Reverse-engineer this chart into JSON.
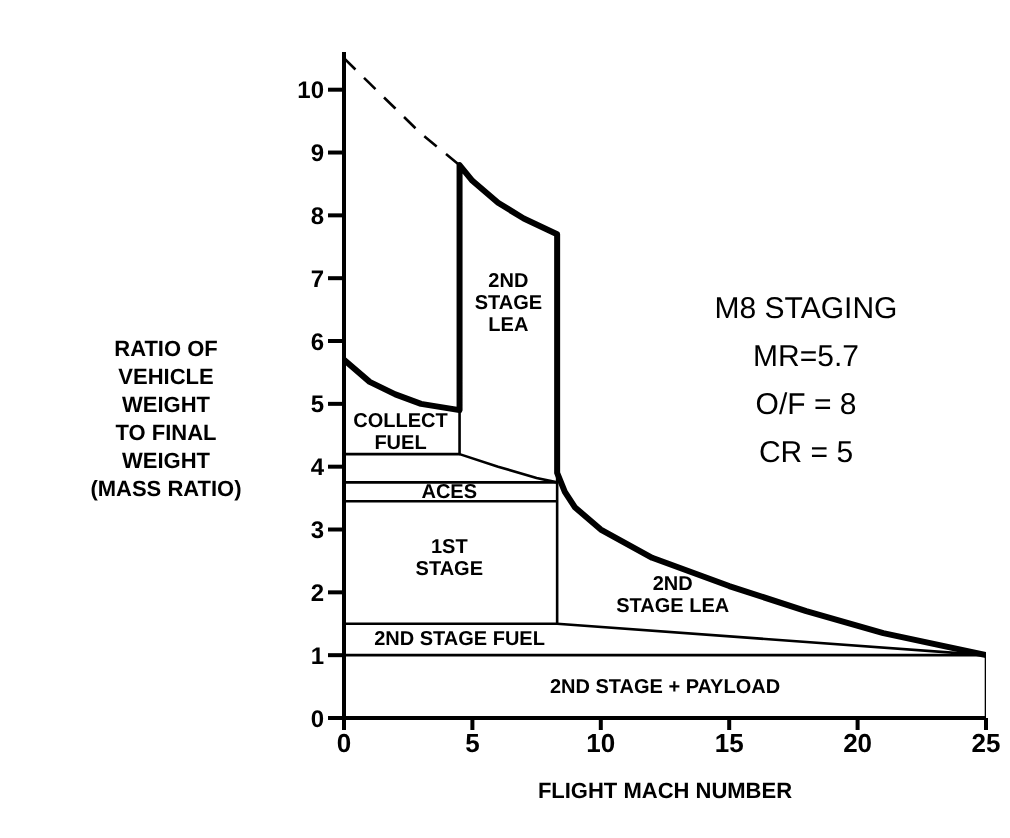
{
  "chart_data": {
    "type": "line",
    "xlabel": "FLIGHT MACH NUMBER",
    "ylabel": "RATIO OF\nVEHICLE\nWEIGHT\nTO FINAL\nWEIGHT\n(MASS RATIO)",
    "xlim": [
      0,
      25
    ],
    "xticks": [
      0,
      5,
      10,
      15,
      20,
      25
    ],
    "ylim": [
      0,
      10.6
    ],
    "yticks": [
      0,
      1,
      2,
      3,
      4,
      5,
      6,
      7,
      8,
      9,
      10
    ],
    "grid": false,
    "marker": "none",
    "series": [
      {
        "color": "#000000",
        "line_style": "dashed",
        "x": [
          0,
          1,
          2,
          3,
          4.5
        ],
        "values": [
          10.5,
          10.1,
          9.7,
          9.3,
          8.8
        ]
      },
      {
        "color": "#000000",
        "line_style": "solid",
        "x": [
          0,
          1,
          2,
          3,
          4.5,
          4.5,
          5,
          6,
          7,
          8.3,
          8.3,
          8.6,
          9,
          10,
          12,
          15,
          18,
          21,
          25
        ],
        "values": [
          5.7,
          5.35,
          5.15,
          5.0,
          4.9,
          8.8,
          8.55,
          8.2,
          7.95,
          7.7,
          3.9,
          3.6,
          3.35,
          3.0,
          2.55,
          2.1,
          1.7,
          1.35,
          1.0
        ]
      },
      {
        "color": "#000000",
        "line_style": "solid",
        "x": [
          0,
          25,
          25
        ],
        "values": [
          1.0,
          1.0,
          0
        ]
      },
      {
        "color": "#000000",
        "line_style": "solid",
        "x": [
          0,
          8.3,
          25
        ],
        "values": [
          1.5,
          1.5,
          1.0
        ]
      },
      {
        "color": "#000000",
        "line_style": "solid",
        "x": [
          8.3,
          8.3
        ],
        "values": [
          1.5,
          3.9
        ]
      },
      {
        "color": "#000000",
        "line_style": "solid",
        "x": [
          0,
          8.3
        ],
        "values": [
          3.45,
          3.45
        ]
      },
      {
        "color": "#000000",
        "line_style": "solid",
        "x": [
          0,
          8.3
        ],
        "values": [
          3.75,
          3.75
        ]
      },
      {
        "color": "#000000",
        "line_style": "solid",
        "x": [
          0,
          4.5,
          4.5
        ],
        "values": [
          4.2,
          4.2,
          4.9
        ]
      },
      {
        "color": "#000000",
        "line_style": "solid",
        "x": [
          4.5,
          6,
          7.5,
          8.3
        ],
        "values": [
          4.2,
          4.0,
          3.82,
          3.75
        ]
      }
    ],
    "annotations": [
      "COLLECT\nFUEL",
      "2ND\nSTAGE\nLEA",
      "ACES",
      "1ST\nSTAGE",
      "2ND\nSTAGE LEA",
      "2ND STAGE FUEL",
      "2ND STAGE + PAYLOAD",
      "M8 STAGING",
      "MR=5.7",
      "O/F = 8",
      "CR = 5"
    ]
  }
}
